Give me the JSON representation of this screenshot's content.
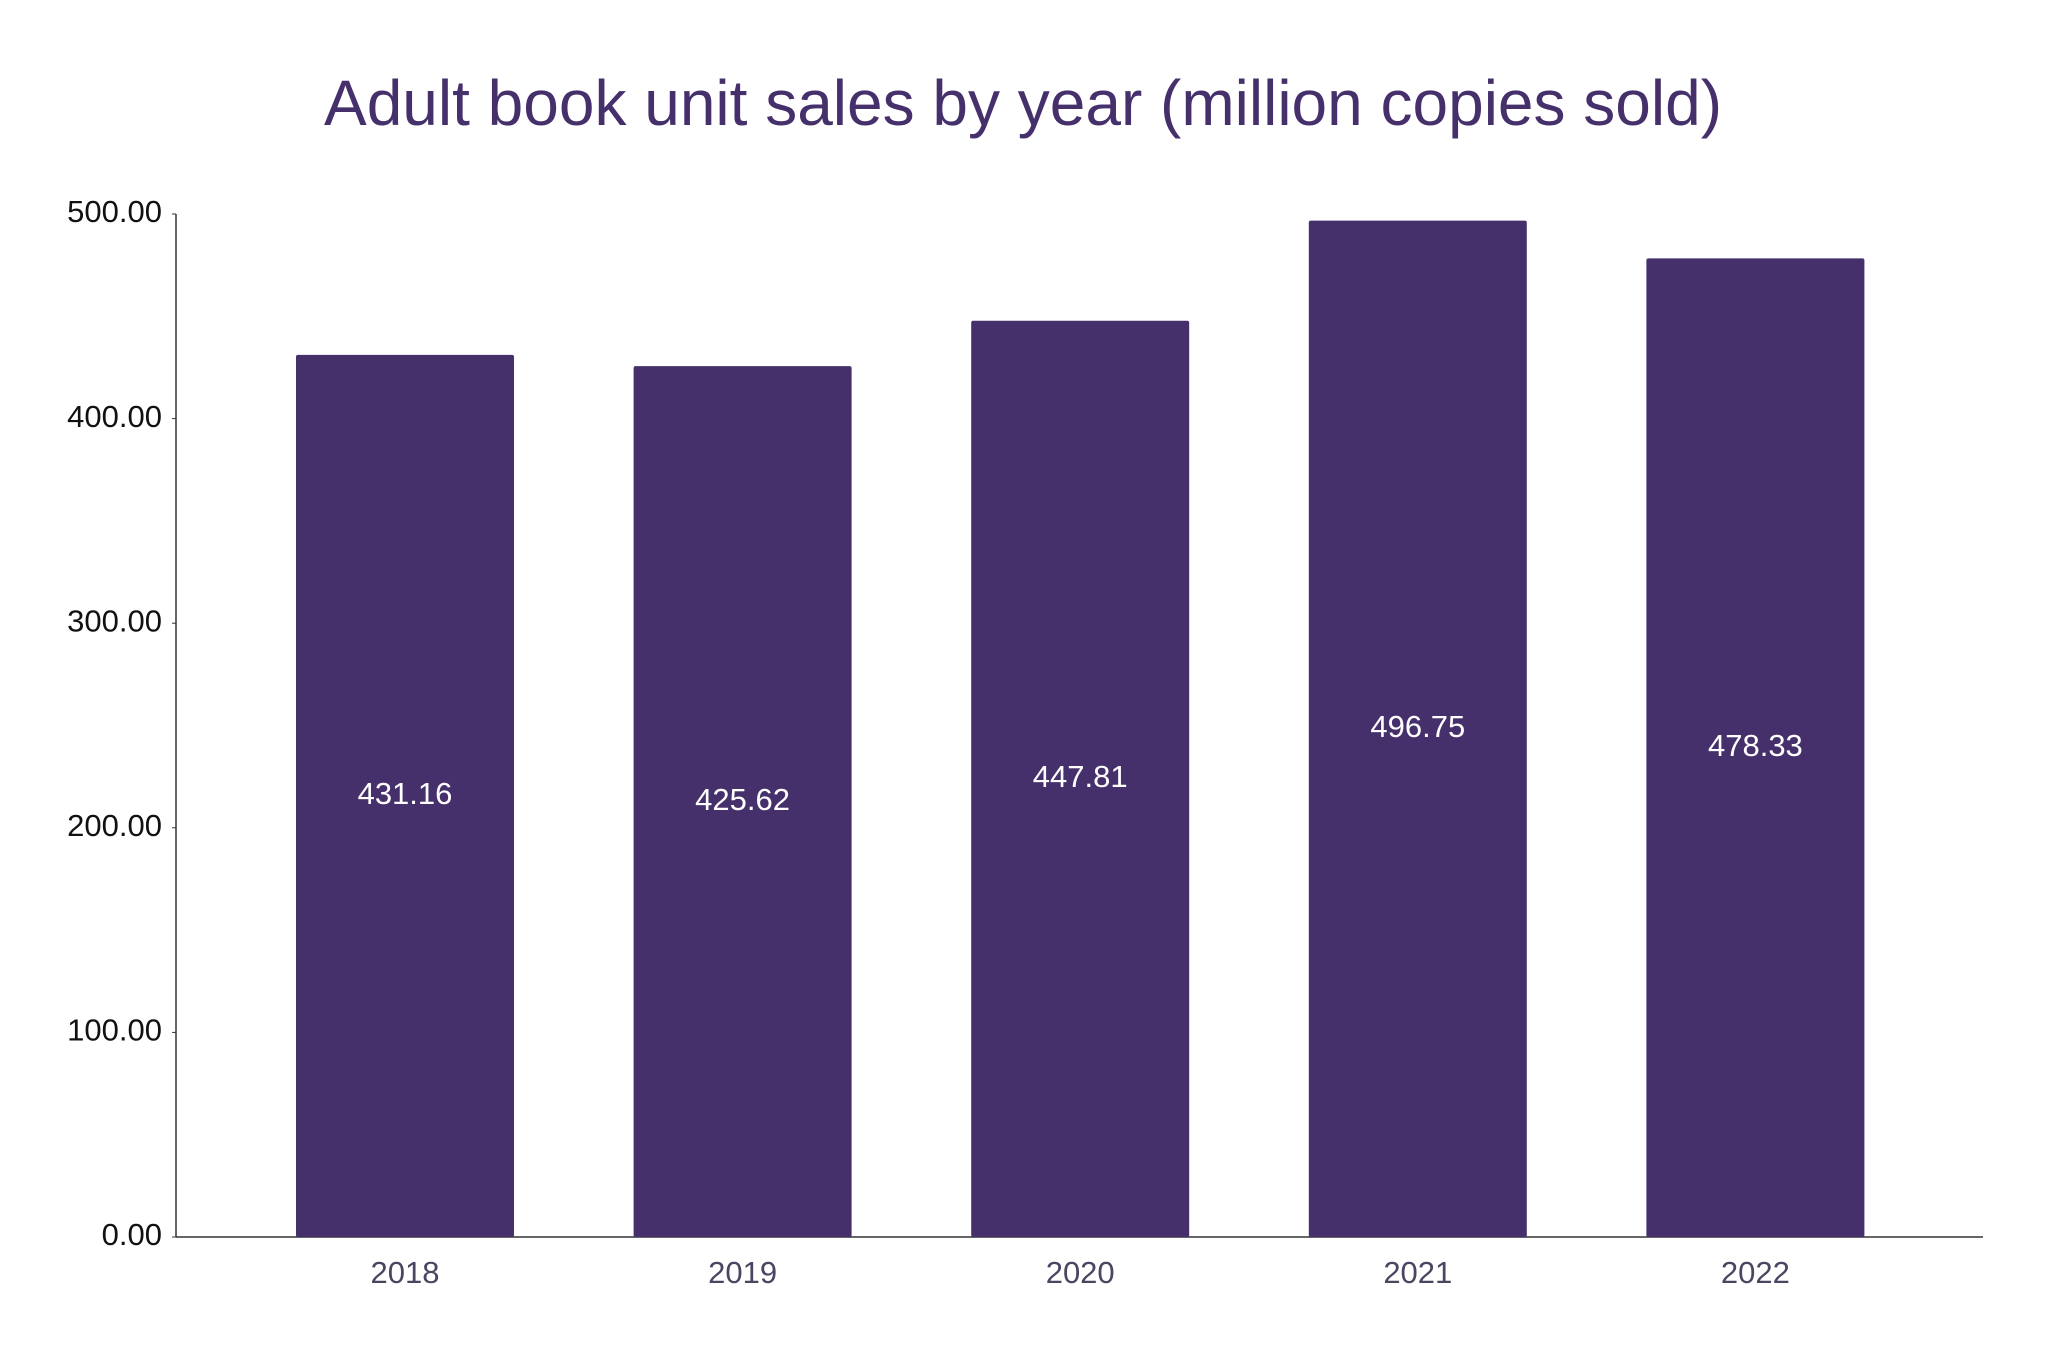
{
  "chart_data": {
    "type": "bar",
    "title": "Adult book unit sales by year (million copies sold)",
    "categories": [
      "2018",
      "2019",
      "2020",
      "2021",
      "2022"
    ],
    "values": [
      431.16,
      425.62,
      447.81,
      496.75,
      478.33
    ],
    "color": "#45306b",
    "ylim": [
      0,
      500
    ],
    "yticks": [
      {
        "value": 0,
        "label": "0.00"
      },
      {
        "value": 100,
        "label": "100.00"
      },
      {
        "value": 200,
        "label": "200.00"
      },
      {
        "value": 300,
        "label": "300.00"
      },
      {
        "value": 400,
        "label": "400.00"
      },
      {
        "value": 500,
        "label": "500.00"
      }
    ],
    "grid": false
  }
}
